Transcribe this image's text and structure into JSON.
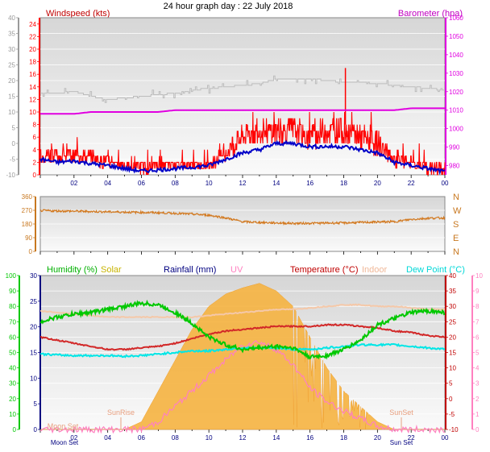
{
  "page_title": "24 hour graph day : 22 July 2018",
  "colors": {
    "background": "#ffffff",
    "plot_bg": "#f2f2f2",
    "wind": "#ff0000",
    "avg_wind": "#0000c8",
    "gust": "#bdbdbd",
    "barometer": "#e000e0",
    "direction": "#d2781e",
    "humidity": "#00c800",
    "solar": "#f5b340",
    "rainfall": "#000080",
    "uv": "#ff80c0",
    "temperature": "#d22828",
    "indoor": "#f5c8a8",
    "dew_point": "#00e6e6"
  },
  "chart_data": [
    {
      "type": "line",
      "id": "wind-baro",
      "title": "24 hour graph day : 22 July 2018",
      "ylabel_left": "Windspeed (kts)",
      "ylabel_right": "Barometer (hpa)",
      "xticks": [
        "02",
        "04",
        "06",
        "08",
        "10",
        "12",
        "14",
        "16",
        "18",
        "20",
        "22",
        "00"
      ],
      "y_left_outer": {
        "lim": [
          -10,
          40
        ],
        "ticks": [
          -10,
          -5,
          0,
          5,
          10,
          15,
          20,
          25,
          30,
          35,
          40
        ]
      },
      "y_left_inner": {
        "lim": [
          0,
          25
        ],
        "ticks": [
          0,
          2,
          4,
          6,
          8,
          10,
          12,
          14,
          16,
          18,
          20,
          22,
          24
        ]
      },
      "y_right": {
        "lim": [
          975,
          1060
        ],
        "ticks": [
          980,
          990,
          1000,
          1010,
          1020,
          1030,
          1040,
          1050,
          1060
        ]
      },
      "x": [
        0,
        1,
        2,
        3,
        4,
        5,
        6,
        7,
        8,
        9,
        10,
        11,
        12,
        13,
        14,
        15,
        16,
        17,
        18,
        19,
        20,
        21,
        22,
        23,
        24
      ],
      "series": [
        {
          "id": "gust",
          "values": [
            16,
            16,
            16.5,
            15,
            14,
            14.5,
            15,
            15.5,
            16,
            17,
            17.5,
            18,
            18.5,
            19,
            20.5,
            20.5,
            20.5,
            20,
            19.5,
            19.5,
            19,
            18.5,
            18,
            17.5,
            17
          ],
          "max": {
            "x": 18.1,
            "y": 17
          }
        },
        {
          "id": "avg_wind",
          "values": [
            2.5,
            2,
            2.2,
            1.8,
            1.5,
            1,
            0.6,
            0.8,
            1,
            1.2,
            1.5,
            2.5,
            3.5,
            4,
            5,
            5,
            4.5,
            4.5,
            4.5,
            4,
            3.5,
            2,
            1.5,
            1,
            0.5
          ]
        },
        {
          "id": "wind_hi",
          "values": [
            5,
            4,
            4,
            4,
            3,
            2,
            2,
            2,
            2,
            2,
            2,
            5,
            8,
            9,
            9,
            9,
            8,
            9,
            9,
            8,
            7,
            4,
            3,
            2,
            2
          ]
        },
        {
          "id": "wind_lo",
          "values": [
            2,
            2,
            2,
            2,
            1,
            1,
            0,
            1,
            1,
            1,
            1,
            2,
            4,
            5,
            5,
            5,
            4,
            5,
            5,
            4,
            3,
            1,
            1,
            0,
            0
          ]
        },
        {
          "id": "barometer",
          "values": [
            1008,
            1008,
            1008,
            1009,
            1009,
            1009,
            1009,
            1009,
            1010,
            1010,
            1010,
            1010,
            1010,
            1010,
            1010,
            1010,
            1010,
            1010,
            1010,
            1010,
            1010,
            1010,
            1011,
            1011,
            1011
          ]
        }
      ]
    },
    {
      "type": "line",
      "id": "direction",
      "xticks": [
        "02",
        "04",
        "06",
        "08",
        "10",
        "12",
        "14",
        "16",
        "18",
        "20",
        "22",
        "00"
      ],
      "y_left": {
        "lim": [
          0,
          360
        ],
        "ticks": [
          0,
          90,
          180,
          270,
          360
        ]
      },
      "y_right_labels": [
        "N",
        "W",
        "S",
        "E",
        "N"
      ],
      "x": [
        0,
        1,
        2,
        3,
        4,
        5,
        6,
        7,
        8,
        9,
        10,
        11,
        12,
        13,
        14,
        15,
        16,
        17,
        18,
        19,
        20,
        21,
        22,
        23,
        24
      ],
      "series": [
        {
          "id": "direction",
          "values": [
            268,
            266,
            264,
            262,
            260,
            258,
            256,
            254,
            250,
            245,
            238,
            220,
            195,
            190,
            187,
            184,
            185,
            186,
            187,
            190,
            193,
            195,
            210,
            218,
            220
          ]
        }
      ]
    },
    {
      "type": "area",
      "id": "temp-hum",
      "legend": [
        "Humidity (%)",
        "Solar",
        "Rainfall (mm)",
        "UV",
        "Temperature (°C)",
        "Indoor",
        "Dew Point (°C)"
      ],
      "xticks": [
        "02",
        "04",
        "06",
        "08",
        "10",
        "12",
        "14",
        "16",
        "18",
        "20",
        "22",
        "00"
      ],
      "y_hum": {
        "lim": [
          0,
          100
        ],
        "ticks": [
          0,
          10,
          20,
          30,
          40,
          50,
          60,
          70,
          80,
          90,
          100
        ]
      },
      "y_rain": {
        "lim": [
          0,
          30
        ],
        "ticks": [
          0,
          5,
          10,
          15,
          20,
          25,
          30
        ]
      },
      "y_temp": {
        "lim": [
          -10,
          40
        ],
        "ticks": [
          -10,
          -5,
          0,
          5,
          10,
          15,
          20,
          25,
          30,
          35,
          40
        ]
      },
      "y_uv": {
        "lim": [
          0,
          10
        ],
        "ticks": [
          0,
          1,
          2,
          3,
          4,
          5,
          6,
          7,
          8,
          9,
          10
        ]
      },
      "annotations": [
        "Moon Set",
        "SunRise",
        "SunSet",
        "Sun Set"
      ],
      "x": [
        0,
        1,
        2,
        3,
        4,
        5,
        6,
        7,
        8,
        9,
        10,
        11,
        12,
        13,
        14,
        15,
        16,
        17,
        18,
        19,
        20,
        21,
        22,
        23,
        24
      ],
      "series": [
        {
          "id": "humidity",
          "values": [
            70,
            73,
            75,
            76,
            78,
            80,
            82,
            81,
            76,
            69,
            60,
            55,
            52,
            53,
            54,
            53,
            47,
            48,
            52,
            58,
            68,
            72,
            76,
            77,
            76
          ]
        },
        {
          "id": "temperature",
          "values": [
            20,
            19,
            18,
            17,
            16,
            16,
            16.5,
            17,
            18,
            19.5,
            21,
            22,
            22.5,
            23,
            23.5,
            23.5,
            23.5,
            24,
            24,
            23.5,
            23,
            22,
            21.5,
            20.5,
            20
          ]
        },
        {
          "id": "indoor",
          "values": [
            28.5,
            28,
            27.5,
            27,
            26.5,
            26.5,
            26.5,
            26.5,
            26.5,
            26.5,
            27,
            27.5,
            28,
            28.5,
            29,
            29,
            29.5,
            30,
            30.5,
            30.5,
            30,
            30,
            29.5,
            29,
            29
          ]
        },
        {
          "id": "dew_point",
          "values": [
            14.5,
            14.2,
            14,
            14,
            14,
            13.8,
            14,
            14.5,
            15,
            15.5,
            15.5,
            16,
            16.5,
            16.5,
            16.5,
            16,
            16,
            16.5,
            17,
            17.5,
            17.5,
            17.5,
            17,
            16.5,
            16
          ]
        },
        {
          "id": "solar",
          "values": [
            0,
            0,
            0,
            0,
            0,
            0,
            5,
            25,
            45,
            65,
            80,
            88,
            92,
            95,
            90,
            80,
            60,
            40,
            25,
            15,
            5,
            0,
            0,
            0,
            0
          ]
        },
        {
          "id": "uv",
          "values": [
            0,
            0,
            0,
            0,
            0,
            0,
            0,
            0.5,
            1.5,
            2.5,
            3.5,
            4.5,
            5.5,
            5.7,
            5.2,
            4.2,
            2.7,
            1.8,
            1.2,
            0.7,
            0.2,
            0,
            0,
            0,
            0
          ]
        }
      ]
    }
  ]
}
